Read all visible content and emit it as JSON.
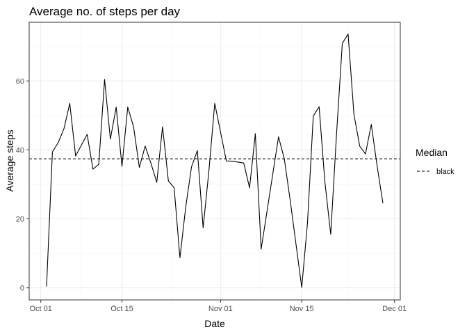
{
  "chart_data": {
    "type": "line",
    "title": "Average no. of steps per day",
    "xlabel": "Date",
    "ylabel": "Average steps",
    "x_axis_type": "date",
    "xlim": [
      "2012-09-29",
      "2012-12-02"
    ],
    "ylim": [
      -3.5,
      77
    ],
    "x_ticks": [
      {
        "date": "2012-10-01",
        "label": "Oct 01"
      },
      {
        "date": "2012-10-15",
        "label": "Oct 15"
      },
      {
        "date": "2012-11-01",
        "label": "Nov 01"
      },
      {
        "date": "2012-11-15",
        "label": "Nov 15"
      },
      {
        "date": "2012-12-01",
        "label": "Dec 01"
      }
    ],
    "y_ticks": [
      {
        "value": 0,
        "label": "0"
      },
      {
        "value": 20,
        "label": "20"
      },
      {
        "value": 40,
        "label": "40"
      },
      {
        "value": 60,
        "label": "60"
      }
    ],
    "grid": true,
    "legend_position": "right",
    "legend": {
      "title": "Median",
      "entries": [
        {
          "label": "black",
          "linetype": "dashed",
          "color": "#000000"
        }
      ]
    },
    "median_line": 37.4,
    "line_color": "#000000",
    "series": [
      {
        "x": [
          "2012-10-02",
          "2012-10-03",
          "2012-10-04",
          "2012-10-05",
          "2012-10-06",
          "2012-10-07",
          "2012-10-09",
          "2012-10-10",
          "2012-10-11",
          "2012-10-12",
          "2012-10-13",
          "2012-10-14",
          "2012-10-15",
          "2012-10-16",
          "2012-10-17",
          "2012-10-18",
          "2012-10-19",
          "2012-10-20",
          "2012-10-21",
          "2012-10-22",
          "2012-10-23",
          "2012-10-24",
          "2012-10-25",
          "2012-10-26",
          "2012-10-27",
          "2012-10-28",
          "2012-10-29",
          "2012-10-30",
          "2012-10-31",
          "2012-11-02",
          "2012-11-03",
          "2012-11-05",
          "2012-11-06",
          "2012-11-07",
          "2012-11-08",
          "2012-11-11",
          "2012-11-12",
          "2012-11-13",
          "2012-11-15",
          "2012-11-16",
          "2012-11-17",
          "2012-11-18",
          "2012-11-19",
          "2012-11-20",
          "2012-11-21",
          "2012-11-22",
          "2012-11-23",
          "2012-11-24",
          "2012-11-25",
          "2012-11-26",
          "2012-11-27",
          "2012-11-28",
          "2012-11-29"
        ],
        "y": [
          0.4,
          39.4,
          42.1,
          46.2,
          53.5,
          38.2,
          44.5,
          34.4,
          35.8,
          60.4,
          43.1,
          52.4,
          35.2,
          52.4,
          46.7,
          34.9,
          41.1,
          36.1,
          30.6,
          46.7,
          31.0,
          29.0,
          8.7,
          23.5,
          35.1,
          39.8,
          17.4,
          34.1,
          53.5,
          36.8,
          36.7,
          36.2,
          29.0,
          44.7,
          11.2,
          43.8,
          37.4,
          25.5,
          0.1,
          18.9,
          49.8,
          52.5,
          30.7,
          15.5,
          44.4,
          70.9,
          73.6,
          50.3,
          41.1,
          38.8,
          47.4,
          35.4,
          24.5
        ]
      }
    ]
  }
}
